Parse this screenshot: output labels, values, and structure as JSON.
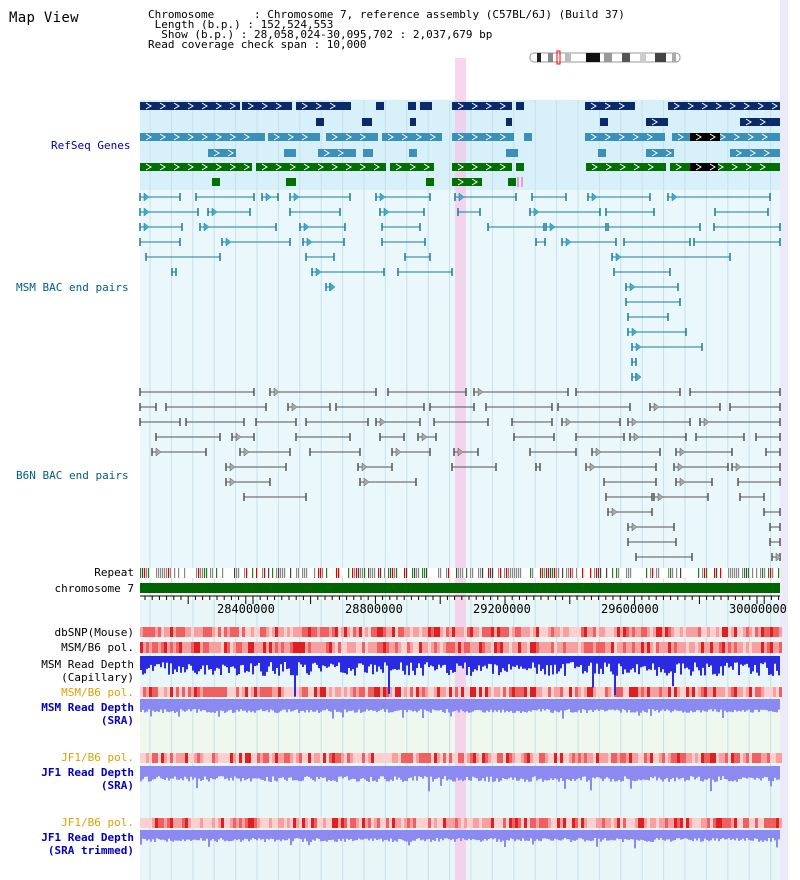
{
  "window": {
    "title": "Map View"
  },
  "info": {
    "chromosome": "Chromosome      : Chromosome 7, reference assembly (C57BL/6J) (Build 37)",
    "length": " Length (b.p.) : 152,524,553",
    "show": "  Show (b.p.) : 28,058,024-30,095,702 : 2,037,679 bp",
    "coverage": "Read coverage check span : 10,000"
  },
  "tracks": {
    "refseq": "RefSeq Genes",
    "msm_bac": "MSM BAC end pairs",
    "b6n_bac": "B6N BAC end pairs",
    "repeat": "Repeat",
    "chromosome": "chromosome 7",
    "dbsnp": "dbSNP(Mouse)",
    "msm_b6_pol_1": "MSM/B6 pol.",
    "msm_depth_cap_1": "MSM Read Depth",
    "msm_depth_cap_2": "(Capillary)",
    "msm_b6_pol_2": "MSM/B6 pol.",
    "msm_depth_sra_1": "MSM Read Depth",
    "msm_depth_sra_2": "(SRA)",
    "jf1_b6_pol_1": "JF1/B6 pol.",
    "jf1_depth_sra_1": "JF1 Read Depth",
    "jf1_depth_sra_2": "(SRA)",
    "jf1_b6_pol_2": "JF1/B6 pol.",
    "jf1_depth_trim_1": "JF1 Read Depth",
    "jf1_depth_trim_2": "(SRA trimmed)"
  },
  "axis": {
    "ticks": [
      "28400000",
      "28800000",
      "29200000",
      "29600000",
      "30000000"
    ]
  },
  "colors": {
    "refseq_label": "#0000aa",
    "msm_bac_label": "#006080",
    "b6n_bac_label": "#006080",
    "pol_orange": "#e0a000",
    "depth_blue": "#0000c0",
    "highlight": "#f4c8e8",
    "chromosome_bar": "#006400"
  }
}
